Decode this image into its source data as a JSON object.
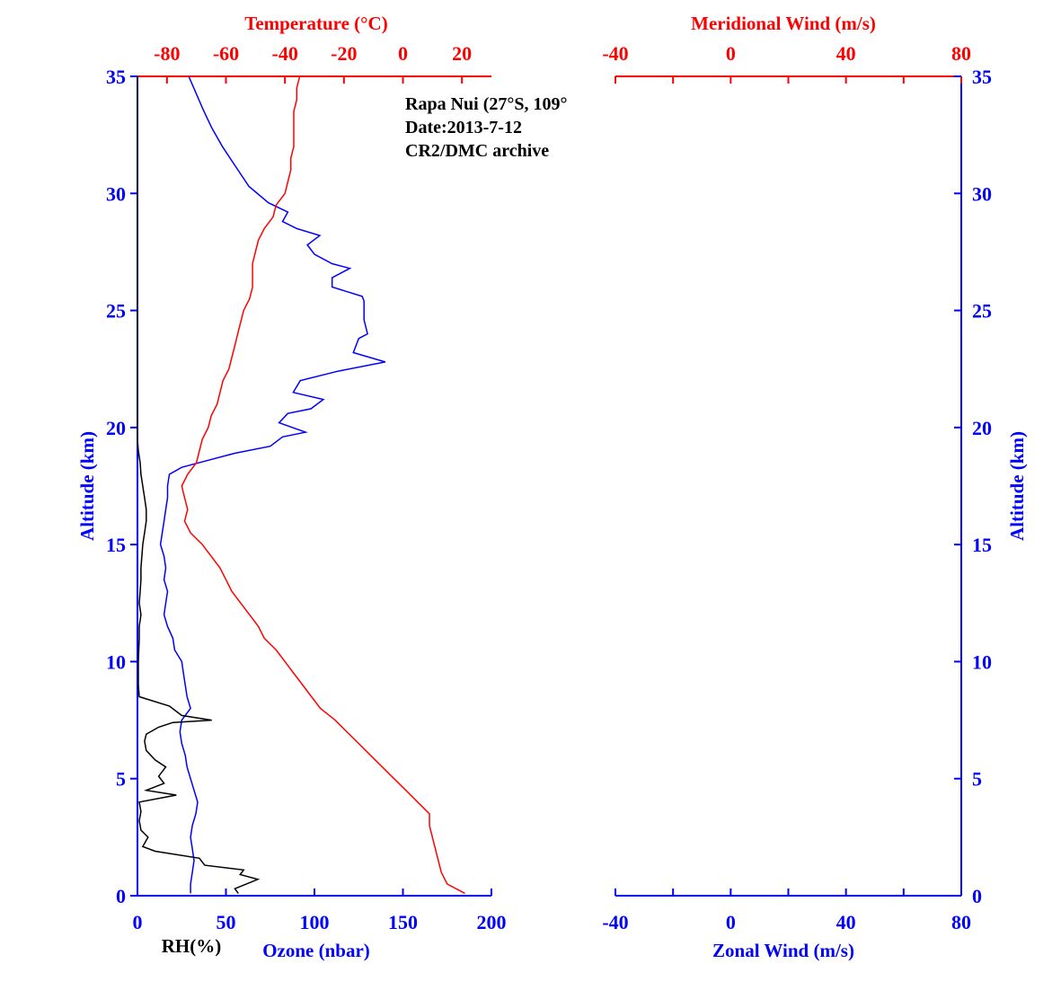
{
  "colors": {
    "ozone": "#0000ff",
    "temperature": "#ff0000",
    "rh": "#000000",
    "axis_blue": "#0000ff",
    "axis_red": "#ff0000"
  },
  "annotations": [
    "Rapa Nui (27°S, 109°",
    "Date:2013-7-12",
    "CR2/DMC archive"
  ],
  "chart_data": [
    {
      "type": "line",
      "panel": "left",
      "y_axis": {
        "label": "Altitude (km)",
        "range": [
          0,
          35
        ],
        "ticks": [
          0,
          5,
          10,
          15,
          20,
          25,
          30,
          35
        ]
      },
      "bottom_axis": {
        "label": "Ozone (nbar)",
        "range": [
          0,
          200
        ],
        "ticks": [
          0,
          50,
          100,
          150,
          200
        ]
      },
      "bottom_secondary_label": "RH(%)",
      "top_axis": {
        "label": "Temperature (°C)",
        "range": [
          -90,
          30
        ],
        "ticks": [
          -80,
          -60,
          -40,
          -20,
          0,
          20
        ]
      },
      "series": [
        {
          "name": "Ozone (nbar)",
          "color": "#0000ff",
          "axis": "bottom",
          "points": [
            [
              30,
              0.1
            ],
            [
              30,
              0.5
            ],
            [
              31,
              1
            ],
            [
              32,
              1.5
            ],
            [
              31,
              2
            ],
            [
              30,
              2.5
            ],
            [
              31,
              3
            ],
            [
              33,
              3.5
            ],
            [
              34,
              4
            ],
            [
              32,
              4.5
            ],
            [
              30,
              5
            ],
            [
              28,
              5.5
            ],
            [
              27,
              6
            ],
            [
              25,
              6.5
            ],
            [
              24,
              7
            ],
            [
              25,
              7.5
            ],
            [
              30,
              8
            ],
            [
              28,
              8.5
            ],
            [
              27,
              9
            ],
            [
              26,
              9.5
            ],
            [
              25,
              10
            ],
            [
              21,
              10.5
            ],
            [
              20,
              11
            ],
            [
              17,
              11.5
            ],
            [
              15,
              12
            ],
            [
              16,
              12.5
            ],
            [
              17,
              13
            ],
            [
              15,
              13.5
            ],
            [
              16,
              14
            ],
            [
              15,
              14.5
            ],
            [
              13,
              15
            ],
            [
              14,
              15.5
            ],
            [
              15,
              16
            ],
            [
              16,
              16.5
            ],
            [
              17,
              17
            ],
            [
              17,
              17.5
            ],
            [
              18,
              18
            ],
            [
              25,
              18.3
            ],
            [
              40,
              18.6
            ],
            [
              55,
              18.9
            ],
            [
              75,
              19.2
            ],
            [
              82,
              19.6
            ],
            [
              95,
              19.8
            ],
            [
              80,
              20.2
            ],
            [
              85,
              20.6
            ],
            [
              98,
              20.8
            ],
            [
              105,
              21.2
            ],
            [
              88,
              21.5
            ],
            [
              92,
              22
            ],
            [
              113,
              22.4
            ],
            [
              140,
              22.8
            ],
            [
              122,
              23.2
            ],
            [
              125,
              23.8
            ],
            [
              130,
              24
            ],
            [
              128,
              24.6
            ],
            [
              128,
              25.4
            ],
            [
              127,
              25.6
            ],
            [
              110,
              26
            ],
            [
              110,
              26.4
            ],
            [
              120,
              26.8
            ],
            [
              110,
              27
            ],
            [
              100,
              27.4
            ],
            [
              96,
              27.8
            ],
            [
              103,
              28.2
            ],
            [
              90,
              28.5
            ],
            [
              82,
              28.8
            ],
            [
              85,
              29.2
            ],
            [
              74,
              29.6
            ],
            [
              63,
              30.3
            ],
            [
              55,
              31.2
            ],
            [
              48,
              32
            ],
            [
              42,
              32.8
            ],
            [
              37,
              33.6
            ],
            [
              33,
              34.3
            ],
            [
              29,
              35
            ]
          ]
        },
        {
          "name": "Temperature (°C)",
          "color": "#ff0000",
          "axis": "top",
          "points": [
            [
              21,
              0.1
            ],
            [
              15,
              0.5
            ],
            [
              13,
              1
            ],
            [
              12,
              1.5
            ],
            [
              11,
              2
            ],
            [
              10,
              2.5
            ],
            [
              9,
              3
            ],
            [
              9,
              3.5
            ],
            [
              5,
              4
            ],
            [
              1,
              4.5
            ],
            [
              -3,
              5
            ],
            [
              -7,
              5.5
            ],
            [
              -11,
              6
            ],
            [
              -15,
              6.5
            ],
            [
              -19,
              7
            ],
            [
              -23,
              7.5
            ],
            [
              -28,
              8
            ],
            [
              -31,
              8.5
            ],
            [
              -34,
              9
            ],
            [
              -37,
              9.5
            ],
            [
              -40,
              10
            ],
            [
              -43,
              10.5
            ],
            [
              -47,
              11
            ],
            [
              -49,
              11.5
            ],
            [
              -52,
              12
            ],
            [
              -55,
              12.5
            ],
            [
              -58,
              13
            ],
            [
              -60,
              13.5
            ],
            [
              -62,
              14
            ],
            [
              -65,
              14.5
            ],
            [
              -68,
              15
            ],
            [
              -72,
              15.5
            ],
            [
              -74,
              16
            ],
            [
              -73,
              16.5
            ],
            [
              -74,
              17
            ],
            [
              -75,
              17.5
            ],
            [
              -73,
              18
            ],
            [
              -70,
              18.5
            ],
            [
              -69,
              19
            ],
            [
              -68,
              19.5
            ],
            [
              -66,
              20
            ],
            [
              -65,
              20.5
            ],
            [
              -63,
              21
            ],
            [
              -62,
              21.5
            ],
            [
              -61,
              22
            ],
            [
              -59,
              22.5
            ],
            [
              -58,
              23
            ],
            [
              -57,
              23.5
            ],
            [
              -56,
              24
            ],
            [
              -55,
              24.5
            ],
            [
              -54,
              25
            ],
            [
              -52,
              25.5
            ],
            [
              -51,
              26
            ],
            [
              -51,
              26.5
            ],
            [
              -51,
              27
            ],
            [
              -50,
              27.5
            ],
            [
              -49,
              28
            ],
            [
              -47,
              28.5
            ],
            [
              -44,
              29
            ],
            [
              -43,
              29.5
            ],
            [
              -40,
              30
            ],
            [
              -39,
              30.5
            ],
            [
              -38,
              31
            ],
            [
              -38,
              31.5
            ],
            [
              -37,
              32
            ],
            [
              -37,
              32.5
            ],
            [
              -37,
              33
            ],
            [
              -37,
              33.5
            ],
            [
              -36,
              34
            ],
            [
              -36,
              34.5
            ],
            [
              -35,
              35
            ]
          ]
        },
        {
          "name": "RH(%)",
          "color": "#000000",
          "axis": "bottom",
          "points": [
            [
              57,
              0.1
            ],
            [
              55,
              0.3
            ],
            [
              68,
              0.7
            ],
            [
              58,
              0.9
            ],
            [
              60,
              1.1
            ],
            [
              38,
              1.3
            ],
            [
              35,
              1.6
            ],
            [
              10,
              1.9
            ],
            [
              3,
              2.1
            ],
            [
              6,
              2.5
            ],
            [
              2,
              2.8
            ],
            [
              1,
              3.2
            ],
            [
              2,
              3.6
            ],
            [
              1,
              4
            ],
            [
              22,
              4.3
            ],
            [
              5,
              4.5
            ],
            [
              15,
              4.8
            ],
            [
              12,
              5.1
            ],
            [
              16,
              5.5
            ],
            [
              10,
              5.8
            ],
            [
              5,
              6.2
            ],
            [
              4,
              6.6
            ],
            [
              5,
              6.9
            ],
            [
              12,
              7.2
            ],
            [
              20,
              7.4
            ],
            [
              42,
              7.5
            ],
            [
              25,
              7.7
            ],
            [
              18,
              8.1
            ],
            [
              1,
              8.5
            ],
            [
              0.5,
              9
            ],
            [
              0.5,
              10
            ],
            [
              1,
              11
            ],
            [
              1,
              11.5
            ],
            [
              2,
              12
            ],
            [
              1,
              12.5
            ],
            [
              1.5,
              13
            ],
            [
              2,
              13.5
            ],
            [
              2,
              14
            ],
            [
              2.5,
              14.5
            ],
            [
              3,
              15
            ],
            [
              4,
              15.5
            ],
            [
              5,
              16
            ],
            [
              5,
              16.5
            ],
            [
              4,
              17
            ],
            [
              3,
              17.5
            ],
            [
              2,
              18
            ],
            [
              1.5,
              18.5
            ],
            [
              0.5,
              19
            ],
            [
              0,
              19.5
            ],
            [
              0,
              35
            ]
          ]
        }
      ]
    },
    {
      "type": "line",
      "panel": "right",
      "y_axis": {
        "label": "Altitude (km)",
        "range": [
          0,
          35
        ],
        "ticks": [
          0,
          5,
          10,
          15,
          20,
          25,
          30,
          35
        ]
      },
      "bottom_axis": {
        "label": "Zonal Wind (m/s)",
        "range": [
          -40,
          80
        ],
        "ticks": [
          -40,
          0,
          40,
          80
        ]
      },
      "top_axis": {
        "label": "Meridional Wind (m/s)",
        "range": [
          -40,
          80
        ],
        "ticks": [
          -40,
          0,
          40,
          80
        ]
      },
      "series": []
    }
  ]
}
